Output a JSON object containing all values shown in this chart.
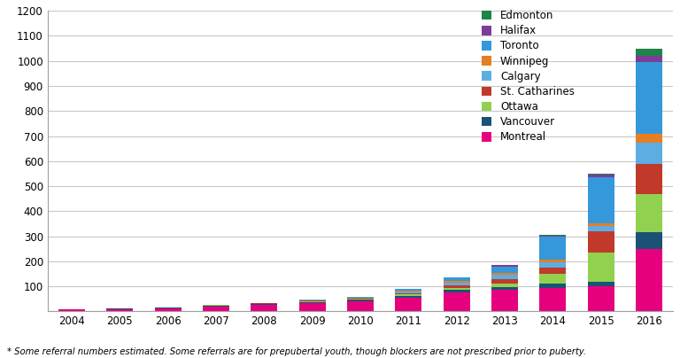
{
  "years": [
    2004,
    2005,
    2006,
    2007,
    2008,
    2009,
    2010,
    2011,
    2012,
    2013,
    2014,
    2015,
    2016
  ],
  "cities": [
    "Montreal",
    "Vancouver",
    "Ottawa",
    "St. Catharines",
    "Calgary",
    "Winnipeg",
    "Toronto",
    "Halifax",
    "Edmonton"
  ],
  "colors": [
    "#e6007e",
    "#1a5276",
    "#92d050",
    "#c0392b",
    "#5dade2",
    "#e67e22",
    "#3498db",
    "#7d3c98",
    "#1e8449"
  ],
  "data": {
    "Montreal": [
      8,
      10,
      14,
      20,
      25,
      32,
      42,
      55,
      75,
      85,
      95,
      100,
      250
    ],
    "Vancouver": [
      0,
      2,
      2,
      4,
      4,
      5,
      7,
      8,
      10,
      12,
      15,
      20,
      65
    ],
    "Ottawa": [
      0,
      0,
      0,
      2,
      2,
      3,
      3,
      5,
      10,
      15,
      40,
      115,
      155
    ],
    "St. Catharines": [
      0,
      0,
      0,
      0,
      2,
      3,
      4,
      6,
      10,
      18,
      25,
      85,
      120
    ],
    "Calgary": [
      0,
      0,
      0,
      2,
      2,
      3,
      4,
      6,
      10,
      15,
      20,
      20,
      85
    ],
    "Winnipeg": [
      0,
      0,
      0,
      0,
      0,
      0,
      0,
      4,
      8,
      10,
      12,
      12,
      35
    ],
    "Toronto": [
      0,
      0,
      0,
      0,
      0,
      0,
      0,
      5,
      12,
      25,
      90,
      185,
      285
    ],
    "Halifax": [
      0,
      0,
      0,
      0,
      0,
      0,
      0,
      0,
      2,
      4,
      5,
      8,
      25
    ],
    "Edmonton": [
      0,
      0,
      0,
      0,
      0,
      0,
      0,
      0,
      0,
      0,
      3,
      5,
      30
    ]
  },
  "ylim": [
    0,
    1200
  ],
  "yticks": [
    0,
    100,
    200,
    300,
    400,
    500,
    600,
    700,
    800,
    900,
    1000,
    1100,
    1200
  ],
  "footnote": "* Some referral numbers estimated. Some referrals are for prepubertal youth, though blockers are not prescribed prior to puberty.",
  "background_color": "#ffffff",
  "grid_color": "#c8c8c8"
}
